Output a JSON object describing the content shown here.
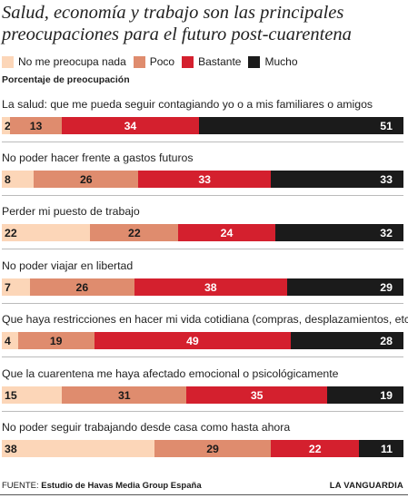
{
  "title_lines": [
    "Salud, economía y trabajo son las principales",
    "preocupaciones para el futuro post-cuarentena"
  ],
  "subtitle": "Porcentaje de preocupación",
  "legend": [
    {
      "label": "No me preocupa nada",
      "color": "#fcd6b8"
    },
    {
      "label": "Poco",
      "color": "#df8c6e"
    },
    {
      "label": "Bastante",
      "color": "#d4202e"
    },
    {
      "label": "Mucho",
      "color": "#1b1b1b"
    }
  ],
  "text_colors": [
    "#1a1a1a",
    "#1a1a1a",
    "#ffffff",
    "#ffffff"
  ],
  "chart_data": {
    "type": "bar",
    "orientation": "horizontal",
    "stacked": true,
    "unit": "%",
    "categories": [
      "La salud: que me pueda seguir contagiando yo o a mis familiares o amigos",
      "No poder hacer frente a gastos futuros",
      "Perder mi puesto de trabajo",
      "No poder viajar en libertad",
      "Que haya restricciones en hacer mi vida cotidiana (compras, desplazamientos, etc)",
      "Que la cuarentena me haya afectado emocional o psicológicamente",
      "No poder seguir trabajando desde casa como hasta ahora"
    ],
    "series": [
      {
        "name": "No me preocupa nada",
        "values": [
          2,
          8,
          22,
          7,
          4,
          15,
          38
        ]
      },
      {
        "name": "Poco",
        "values": [
          13,
          26,
          22,
          26,
          19,
          31,
          29
        ]
      },
      {
        "name": "Bastante",
        "values": [
          34,
          33,
          24,
          38,
          49,
          35,
          22
        ]
      },
      {
        "name": "Mucho",
        "values": [
          51,
          33,
          32,
          29,
          28,
          19,
          11
        ]
      }
    ],
    "legend_position": "top"
  },
  "footer": {
    "source_label": "FUENTE:",
    "source_value": "Estudio de Havas Media Group España",
    "brand": "LA VANGUARDIA"
  }
}
